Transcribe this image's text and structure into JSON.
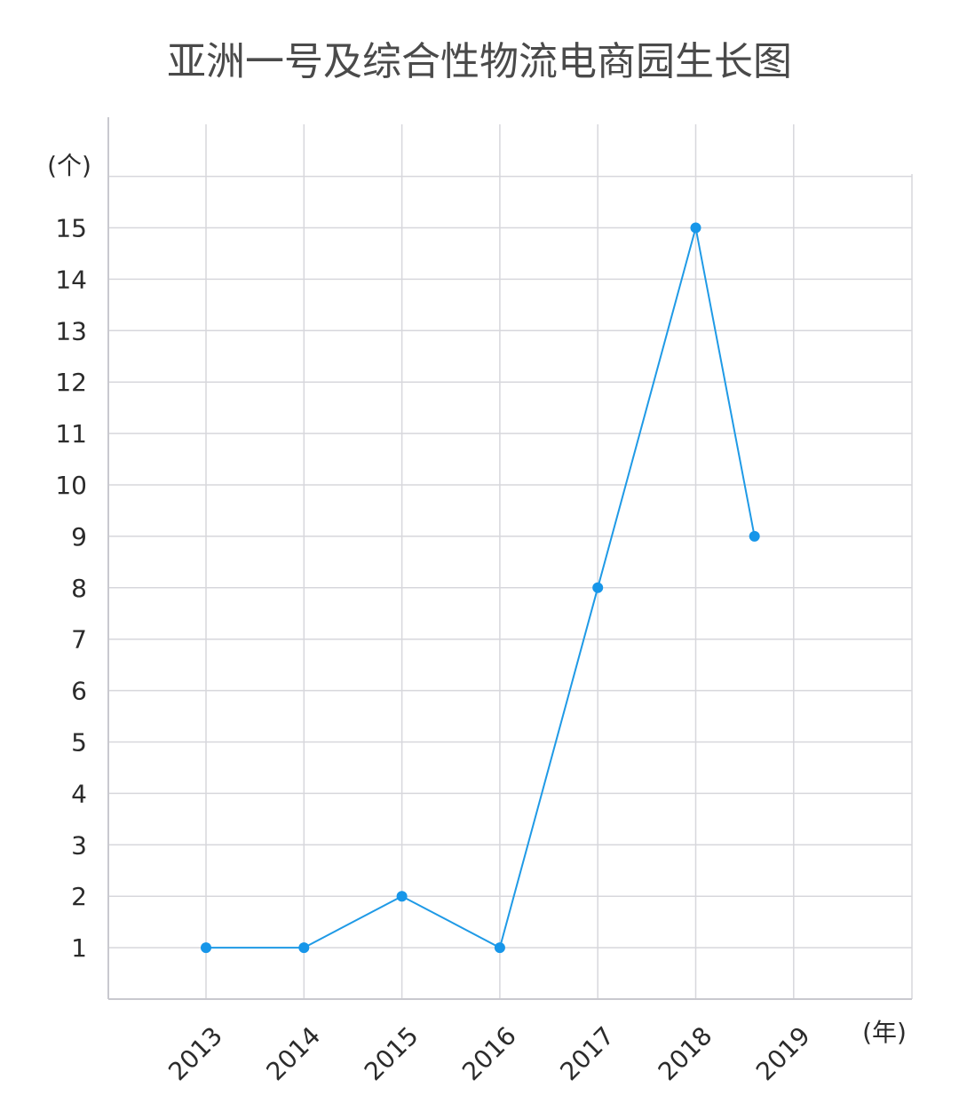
{
  "chart_data": {
    "type": "line",
    "title": "亚洲一号及综合性物流电商园生长图",
    "ylabel": "(个)",
    "xlabel": "(年)",
    "ylim": [
      0,
      16
    ],
    "yticks": [
      "1",
      "2",
      "3",
      "4",
      "5",
      "6",
      "7",
      "8",
      "9",
      "10",
      "11",
      "12",
      "13",
      "14",
      "15"
    ],
    "categories": [
      "2013",
      "2014",
      "2015",
      "2016",
      "2017",
      "2018",
      "2019"
    ],
    "series": [
      {
        "name": "亚洲一号及综合性物流电商园",
        "color": "#1f9ae6",
        "points": [
          {
            "x": 2013,
            "y": 1
          },
          {
            "x": 2014,
            "y": 1
          },
          {
            "x": 2015,
            "y": 2
          },
          {
            "x": 2016,
            "y": 1
          },
          {
            "x": 2017,
            "y": 8
          },
          {
            "x": 2018,
            "y": 15
          },
          {
            "x": 2018.6,
            "y": 9
          }
        ]
      }
    ],
    "grid": true
  }
}
